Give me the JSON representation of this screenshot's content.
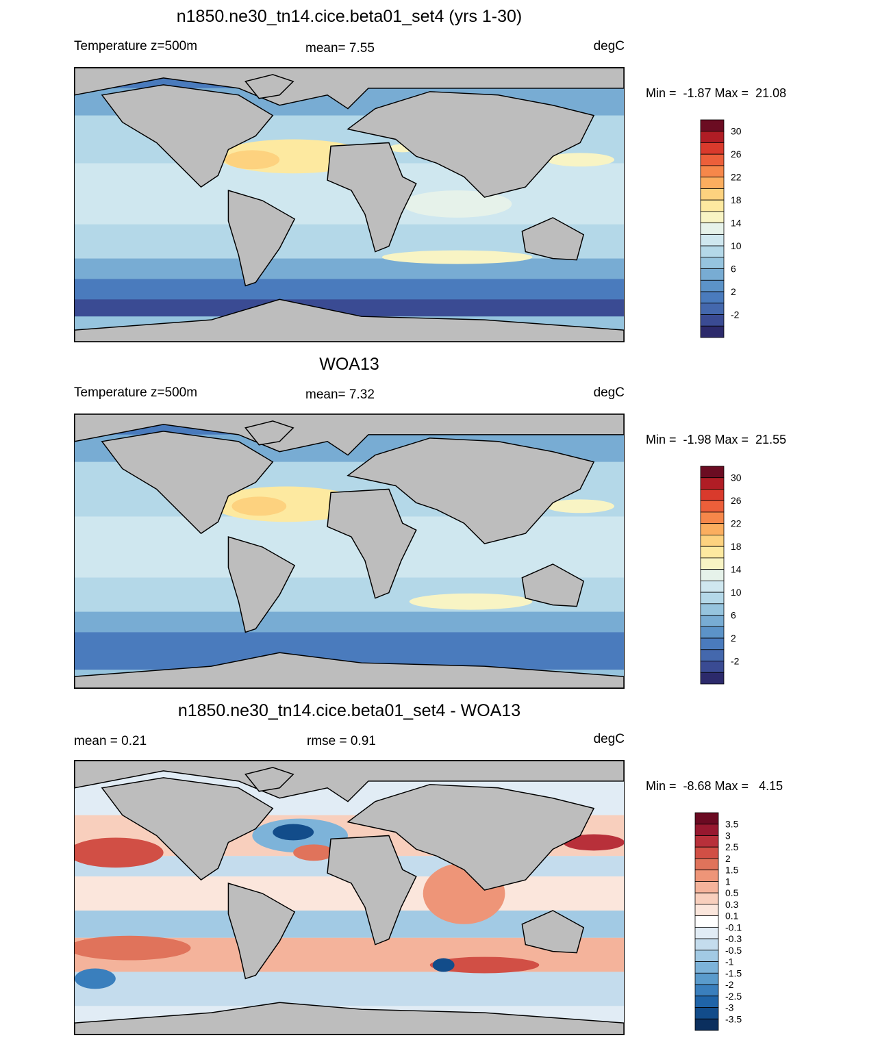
{
  "panels": [
    {
      "title": "n1850.ne30_tn14.cice.beta01_set4 (yrs 1-30)",
      "left_label": "Temperature z=500m",
      "center_label": "mean=   7.55",
      "right_label": "degC",
      "minmax": "Min =  -1.87 Max =  21.08",
      "colorbar": {
        "colors": [
          "#2c2a6b",
          "#3a4b93",
          "#4468ad",
          "#4a7bbd",
          "#5c93c8",
          "#78acd3",
          "#96c4de",
          "#b4d8e8",
          "#cfe7ef",
          "#e6f2ea",
          "#f8f4c4",
          "#fde9a0",
          "#fdd27f",
          "#fbae5f",
          "#f6874a",
          "#ec5f3a",
          "#d93a2c",
          "#b01d25",
          "#6b0c22"
        ],
        "tick_labels": [
          "30",
          "26",
          "22",
          "18",
          "14",
          "10",
          "6",
          "2",
          "-2"
        ]
      }
    },
    {
      "title": "WOA13",
      "left_label": "Temperature z=500m",
      "center_label": "mean=   7.32",
      "right_label": "degC",
      "minmax": "Min =  -1.98 Max =  21.55",
      "colorbar": {
        "colors": [
          "#2c2a6b",
          "#3a4b93",
          "#4468ad",
          "#4a7bbd",
          "#5c93c8",
          "#78acd3",
          "#96c4de",
          "#b4d8e8",
          "#cfe7ef",
          "#e6f2ea",
          "#f8f4c4",
          "#fde9a0",
          "#fdd27f",
          "#fbae5f",
          "#f6874a",
          "#ec5f3a",
          "#d93a2c",
          "#b01d25",
          "#6b0c22"
        ],
        "tick_labels": [
          "30",
          "26",
          "22",
          "18",
          "14",
          "10",
          "6",
          "2",
          "-2"
        ]
      }
    },
    {
      "title": "n1850.ne30_tn14.cice.beta01_set4 - WOA13",
      "left_label": "mean =   0.21",
      "center_label": "rmse =   0.91",
      "right_label": "degC",
      "minmax": "Min =  -8.68 Max =   4.15",
      "colorbar": {
        "colors": [
          "#0b2f5e",
          "#124c8a",
          "#1f64a8",
          "#3a7fbd",
          "#5a9bcc",
          "#7db3d9",
          "#a2cae4",
          "#c4dced",
          "#e1ecf5",
          "#ffffff",
          "#fbe6dc",
          "#f8cfbd",
          "#f4b39b",
          "#ee9578",
          "#e0735b",
          "#d14f45",
          "#b8303a",
          "#97182f",
          "#6b0a22"
        ],
        "tick_labels": [
          "3.5",
          "3",
          "2.5",
          "2",
          "1.5",
          "1",
          "0.5",
          "0.3",
          "0.1",
          "-0.1",
          "-0.3",
          "-0.5",
          "-1",
          "-1.5",
          "-2",
          "-2.5",
          "-3",
          "-3.5"
        ]
      }
    }
  ]
}
